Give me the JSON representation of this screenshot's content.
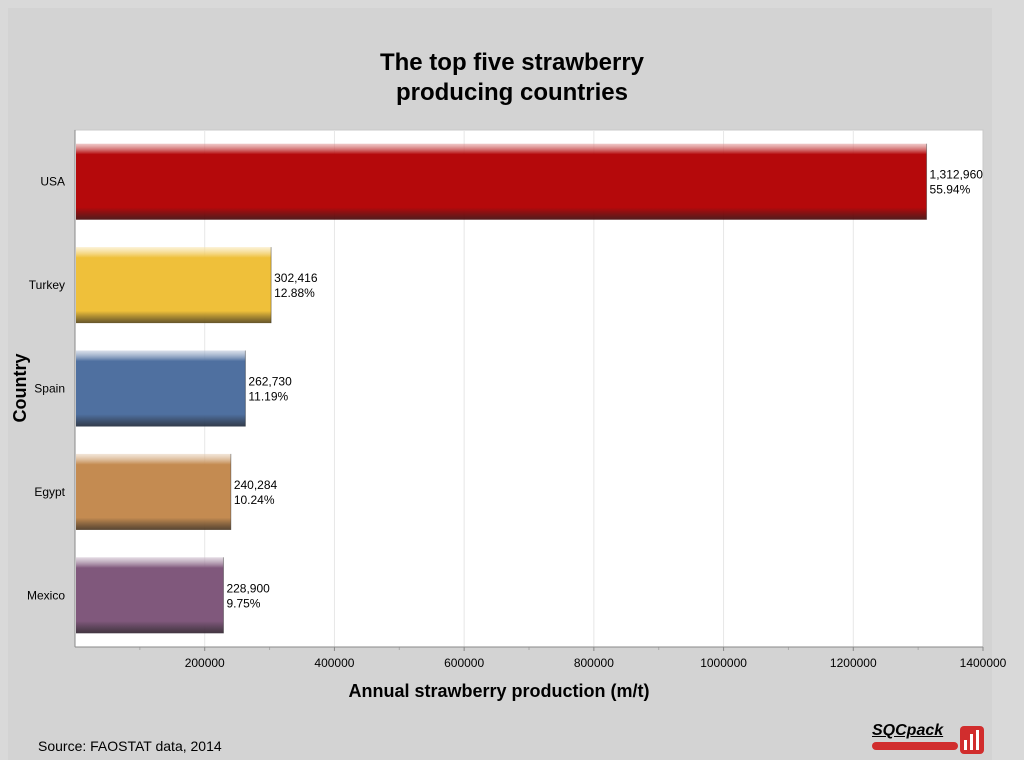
{
  "chart_data": {
    "type": "bar",
    "orientation": "horizontal",
    "title_lines": [
      "The top five strawberry",
      "producing countries"
    ],
    "xlabel": "Annual strawberry production (m/t)",
    "ylabel": "Country",
    "categories": [
      "USA",
      "Turkey",
      "Spain",
      "Egypt",
      "Mexico"
    ],
    "values": [
      1312960,
      302416,
      262730,
      240284,
      228900
    ],
    "value_labels": [
      "1,312,960",
      "302,416",
      "262,730",
      "240,284",
      "228,900"
    ],
    "percent_labels": [
      "55.94%",
      "12.88%",
      "11.19%",
      "10.24%",
      "9.75%"
    ],
    "colors": [
      "#b5090b",
      "#efc03a",
      "#4f70a0",
      "#c48b51",
      "#80587c"
    ],
    "xlim": [
      0,
      1400000
    ],
    "xticks": [
      200000,
      400000,
      600000,
      800000,
      1000000,
      1200000,
      1400000
    ],
    "xtick_labels": [
      "200000",
      "400000",
      "600000",
      "800000",
      "1000000",
      "1200000",
      "1400000"
    ],
    "grid": true,
    "source": "Source:  FAOSTAT data, 2014"
  },
  "logo": {
    "text": "SQCpack"
  }
}
